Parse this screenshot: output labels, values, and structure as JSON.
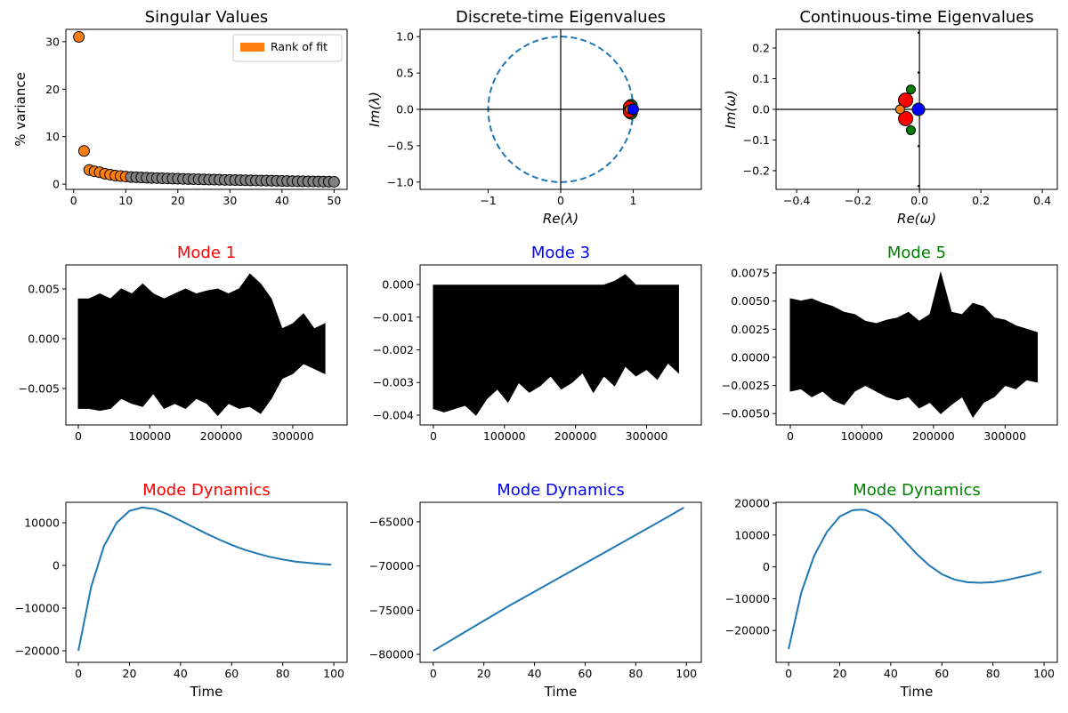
{
  "chart_data": [
    {
      "type": "scatter",
      "title": "Singular Values",
      "ylabel": "% variance",
      "legend": "upper right",
      "xlim": [
        -1.5,
        52.5
      ],
      "ylim": [
        -1.1,
        32.6
      ],
      "xticks": [
        0,
        10,
        20,
        30,
        40,
        50
      ],
      "yticks": [
        0,
        10,
        20,
        30
      ],
      "series": [
        {
          "name": "Rank of fit",
          "color": "#ff7f0e",
          "marker_size": 6,
          "x": [
            1,
            2,
            3,
            4,
            5,
            6,
            7,
            8,
            9,
            10
          ],
          "values": [
            31,
            7,
            3,
            2.7,
            2.5,
            2.2,
            2.0,
            1.8,
            1.7,
            1.6
          ]
        },
        {
          "color": "#808080",
          "marker_size": 6,
          "x": [
            11,
            12,
            13,
            14,
            15,
            16,
            17,
            18,
            19,
            20,
            21,
            22,
            23,
            24,
            25,
            26,
            27,
            28,
            29,
            30,
            31,
            32,
            33,
            34,
            35,
            36,
            37,
            38,
            39,
            40,
            41,
            42,
            43,
            44,
            45,
            46,
            47,
            48,
            49,
            50
          ],
          "values": [
            1.5,
            1.45,
            1.4,
            1.35,
            1.3,
            1.27,
            1.24,
            1.2,
            1.17,
            1.14,
            1.11,
            1.08,
            1.05,
            1.02,
            1.0,
            0.97,
            0.95,
            0.93,
            0.9,
            0.88,
            0.86,
            0.84,
            0.82,
            0.8,
            0.78,
            0.76,
            0.74,
            0.72,
            0.7,
            0.68,
            0.66,
            0.64,
            0.62,
            0.6,
            0.59,
            0.57,
            0.55,
            0.54,
            0.52,
            0.5
          ]
        }
      ]
    },
    {
      "type": "scatter",
      "title": "Discrete-time Eigenvalues",
      "xlabel": "Re(λ)",
      "ylabel": "Im(λ)",
      "unit_circle": true,
      "origin_lines": true,
      "xlim": [
        -1.94,
        1.94
      ],
      "ylim": [
        -1.1,
        1.1
      ],
      "xticks": [
        {
          "value": -1,
          "label": "−1"
        },
        0,
        1
      ],
      "yticks": [
        {
          "value": -1,
          "label": "−1.0"
        },
        {
          "value": -0.5,
          "label": "−0.5"
        },
        {
          "value": 0,
          "label": "0.0"
        },
        0.5,
        {
          "value": 1,
          "label": "1.0"
        }
      ],
      "series": [
        {
          "color": "#008000",
          "marker_size": 7,
          "x": [
            0.97,
            0.97
          ],
          "values": [
            0.05,
            -0.05
          ]
        },
        {
          "color": "#ff0000",
          "marker_size": 7,
          "x": [
            0.95,
            0.95
          ],
          "values": [
            0.03,
            -0.03
          ]
        },
        {
          "color": "#ff7f0e",
          "marker_size": 5,
          "x": [
            0.955
          ],
          "values": [
            0
          ]
        },
        {
          "color": "#0000ff",
          "marker_size": 6,
          "x": [
            1.0
          ],
          "values": [
            0
          ]
        }
      ]
    },
    {
      "type": "scatter",
      "title": "Continuous-time Eigenvalues",
      "xlabel": "Re(ω)",
      "ylabel": "Im(ω)",
      "origin_lines": true,
      "xlim": [
        -0.467,
        0.449
      ],
      "ylim": [
        -0.261,
        0.261
      ],
      "xticks": [
        {
          "value": -0.4,
          "label": "−0.4"
        },
        {
          "value": -0.2,
          "label": "−0.2"
        },
        {
          "value": 0,
          "label": "0.0"
        },
        0.2,
        0.4
      ],
      "yticks": [
        {
          "value": -0.2,
          "label": "−0.2"
        },
        {
          "value": -0.1,
          "label": "−0.1"
        },
        {
          "value": 0,
          "label": "0.0"
        },
        0.1,
        0.2
      ],
      "series": [
        {
          "color": "#000000",
          "marker_size": 1.2,
          "x": [
            -0.003,
            -0.003,
            -0.003,
            -0.003
          ],
          "values": [
            0.25,
            0.12,
            -0.12,
            -0.25
          ]
        },
        {
          "color": "#008000",
          "marker_size": 5,
          "x": [
            -0.028,
            -0.028
          ],
          "values": [
            0.065,
            -0.068
          ]
        },
        {
          "color": "#ff0000",
          "marker_size": 8,
          "x": [
            -0.045,
            -0.045
          ],
          "values": [
            0.03,
            -0.03
          ]
        },
        {
          "color": "#ff7f0e",
          "marker_size": 5,
          "x": [
            -0.063
          ],
          "values": [
            0
          ]
        },
        {
          "color": "#0000ff",
          "marker_size": 7,
          "x": [
            -0.003
          ],
          "values": [
            0
          ]
        }
      ]
    },
    {
      "type": "band",
      "title": "Mode 1",
      "title_color": "#ff0000",
      "color": "#000000",
      "xlim": [
        -17400,
        376000
      ],
      "ylim": [
        -0.00866,
        0.00741
      ],
      "xticks": [
        0,
        100000,
        200000,
        300000
      ],
      "yticks": [
        {
          "value": -0.005,
          "label": "−0.005"
        },
        {
          "value": 0,
          "label": "0.000"
        },
        0.005
      ],
      "x": [
        0,
        15000,
        30000,
        45000,
        60000,
        75000,
        90000,
        105000,
        120000,
        135000,
        150000,
        165000,
        180000,
        195000,
        210000,
        225000,
        240000,
        255000,
        270000,
        285000,
        300000,
        315000,
        330000,
        345000
      ],
      "high": [
        0.004,
        0.004,
        0.0045,
        0.004,
        0.005,
        0.0045,
        0.0055,
        0.0045,
        0.004,
        0.0045,
        0.005,
        0.0045,
        0.0048,
        0.005,
        0.0045,
        0.005,
        0.0065,
        0.0055,
        0.004,
        0.001,
        0.0015,
        0.0025,
        0.001,
        0.0015
      ],
      "low": [
        -0.007,
        -0.007,
        -0.0072,
        -0.007,
        -0.006,
        -0.0065,
        -0.0068,
        -0.0055,
        -0.007,
        -0.0065,
        -0.007,
        -0.006,
        -0.0065,
        -0.0077,
        -0.0065,
        -0.007,
        -0.0068,
        -0.0075,
        -0.006,
        -0.004,
        -0.0035,
        -0.0025,
        -0.003,
        -0.0035
      ]
    },
    {
      "type": "band",
      "title": "Mode 3",
      "title_color": "#0000ff",
      "color": "#000000",
      "xlim": [
        -18700,
        377000
      ],
      "ylim": [
        -0.0043,
        0.0006
      ],
      "xticks": [
        0,
        100000,
        200000,
        300000
      ],
      "yticks": [
        {
          "value": -0.004,
          "label": "−0.004"
        },
        {
          "value": -0.003,
          "label": "−0.003"
        },
        {
          "value": -0.002,
          "label": "−0.002"
        },
        {
          "value": -0.001,
          "label": "−0.001"
        },
        {
          "value": 0,
          "label": "0.000"
        }
      ],
      "x": [
        0,
        15000,
        30000,
        45000,
        60000,
        75000,
        90000,
        105000,
        120000,
        135000,
        150000,
        165000,
        180000,
        195000,
        210000,
        225000,
        240000,
        255000,
        270000,
        285000,
        300000,
        315000,
        330000,
        345000
      ],
      "high": [
        -2e-05,
        -2e-05,
        -2e-05,
        -2e-05,
        -2e-05,
        -2e-05,
        -2e-05,
        -2e-05,
        -2e-05,
        -2e-05,
        -2e-05,
        -2e-05,
        -2e-05,
        -2e-05,
        -2e-05,
        -2e-05,
        -2e-05,
        0.0001,
        0.0003,
        -2e-05,
        -2e-05,
        -2e-05,
        -2e-05,
        -2e-05
      ],
      "low": [
        -0.0038,
        -0.0039,
        -0.0038,
        -0.0037,
        -0.004,
        -0.0035,
        -0.0032,
        -0.0036,
        -0.003,
        -0.0033,
        -0.0031,
        -0.0028,
        -0.0032,
        -0.003,
        -0.0027,
        -0.0033,
        -0.0028,
        -0.0031,
        -0.0025,
        -0.0028,
        -0.0026,
        -0.0029,
        -0.0024,
        -0.0027
      ]
    },
    {
      "type": "band",
      "title": "Mode 5",
      "title_color": "#008000",
      "color": "#000000",
      "xlim": [
        -19900,
        373000
      ],
      "ylim": [
        -0.00601,
        0.00821
      ],
      "xticks": [
        0,
        100000,
        200000,
        300000
      ],
      "yticks": [
        {
          "value": -0.005,
          "label": "−0.0050"
        },
        {
          "value": -0.0025,
          "label": "−0.0025"
        },
        {
          "value": 0,
          "label": "0.0000"
        },
        {
          "value": 0.0025,
          "label": "0.0025"
        },
        {
          "value": 0.005,
          "label": "0.0050"
        },
        0.0075
      ],
      "x": [
        0,
        15000,
        30000,
        45000,
        60000,
        75000,
        90000,
        105000,
        120000,
        135000,
        150000,
        165000,
        180000,
        195000,
        210000,
        225000,
        240000,
        255000,
        270000,
        285000,
        300000,
        315000,
        330000,
        345000
      ],
      "high": [
        0.0052,
        0.005,
        0.0052,
        0.0048,
        0.0045,
        0.004,
        0.0038,
        0.0032,
        0.003,
        0.0033,
        0.0035,
        0.004,
        0.0032,
        0.0038,
        0.0075,
        0.004,
        0.0038,
        0.0048,
        0.0045,
        0.0035,
        0.0033,
        0.0028,
        0.0025,
        0.0022
      ],
      "low": [
        -0.003,
        -0.0028,
        -0.0035,
        -0.003,
        -0.0038,
        -0.0042,
        -0.003,
        -0.0025,
        -0.003,
        -0.0035,
        -0.0038,
        -0.0035,
        -0.0045,
        -0.004,
        -0.005,
        -0.0042,
        -0.0035,
        -0.0053,
        -0.004,
        -0.0035,
        -0.0025,
        -0.0028,
        -0.002,
        -0.0022
      ]
    },
    {
      "type": "line",
      "title": "Mode Dynamics",
      "title_color": "#ff0000",
      "xlabel": "Time",
      "color": "#1f77b4",
      "xlim": [
        -4.9,
        105.2
      ],
      "ylim": [
        -22700,
        14800
      ],
      "xticks": [
        0,
        20,
        40,
        60,
        80,
        100
      ],
      "yticks": [
        {
          "value": -20000,
          "label": "−20000"
        },
        {
          "value": -10000,
          "label": "−10000"
        },
        0,
        10000
      ],
      "x": [
        0,
        5,
        10,
        15,
        20,
        25,
        30,
        35,
        40,
        45,
        50,
        55,
        60,
        65,
        70,
        75,
        80,
        85,
        90,
        95,
        99
      ],
      "values": [
        -20000,
        -5000,
        4500,
        10000,
        12800,
        13600,
        13200,
        12000,
        10500,
        9000,
        7500,
        6100,
        4800,
        3700,
        2800,
        2000,
        1400,
        900,
        600,
        350,
        200
      ]
    },
    {
      "type": "line",
      "title": "Mode Dynamics",
      "title_color": "#0000ff",
      "xlabel": "Time",
      "color": "#1f77b4",
      "xlim": [
        -5.2,
        105.9
      ],
      "ylim": [
        -80900,
        -62800
      ],
      "xticks": [
        0,
        20,
        40,
        60,
        80,
        100
      ],
      "yticks": [
        {
          "value": -80000,
          "label": "−80000"
        },
        {
          "value": -75000,
          "label": "−75000"
        },
        {
          "value": -70000,
          "label": "−70000"
        },
        {
          "value": -65000,
          "label": "−65000"
        }
      ],
      "x": [
        0,
        10,
        20,
        30,
        40,
        50,
        60,
        70,
        80,
        90,
        99
      ],
      "values": [
        -79600,
        -77900,
        -76200,
        -74500,
        -72900,
        -71300,
        -69700,
        -68100,
        -66500,
        -64880,
        -63400
      ]
    },
    {
      "type": "line",
      "title": "Mode Dynamics",
      "title_color": "#008000",
      "xlabel": "Time",
      "color": "#1f77b4",
      "xlim": [
        -4.9,
        105.2
      ],
      "ylim": [
        -30000,
        20300
      ],
      "xticks": [
        0,
        20,
        40,
        60,
        80,
        100
      ],
      "yticks": [
        {
          "value": -20000,
          "label": "−20000"
        },
        {
          "value": -10000,
          "label": "−10000"
        },
        0,
        10000,
        20000
      ],
      "x": [
        0,
        5,
        10,
        15,
        20,
        25,
        28,
        30,
        35,
        40,
        45,
        50,
        55,
        60,
        65,
        70,
        75,
        80,
        85,
        90,
        95,
        99
      ],
      "values": [
        -25800,
        -8000,
        3500,
        11000,
        15800,
        17800,
        18000,
        17900,
        16200,
        12800,
        8500,
        4200,
        500,
        -2300,
        -4000,
        -4800,
        -5000,
        -4800,
        -4200,
        -3300,
        -2400,
        -1500
      ]
    }
  ]
}
